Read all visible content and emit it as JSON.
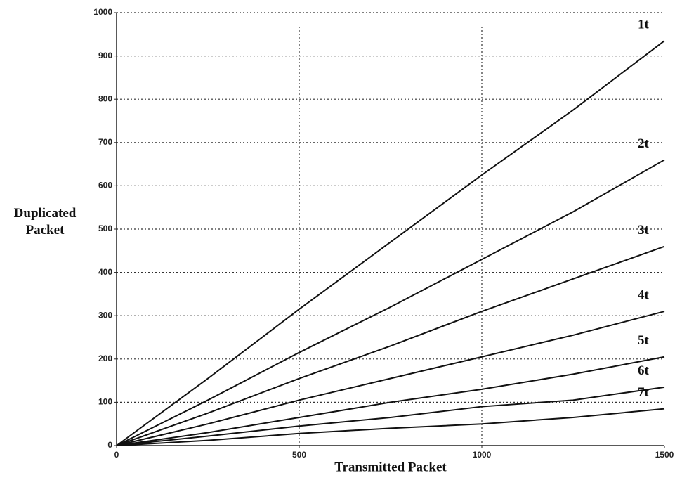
{
  "chart_data": {
    "type": "line",
    "x_label": "Transmitted Packet",
    "y_label": "Duplicated Packet",
    "x": [
      0,
      250,
      500,
      750,
      1000,
      1250,
      1500
    ],
    "series": [
      {
        "name": "1t",
        "color": "#111111",
        "values": [
          0,
          155,
          315,
          470,
          625,
          775,
          935
        ]
      },
      {
        "name": "2t",
        "color": "#111111",
        "values": [
          0,
          105,
          215,
          320,
          430,
          540,
          660
        ]
      },
      {
        "name": "3t",
        "color": "#111111",
        "values": [
          0,
          75,
          155,
          230,
          310,
          385,
          460
        ]
      },
      {
        "name": "4t",
        "color": "#111111",
        "values": [
          0,
          50,
          105,
          155,
          205,
          255,
          310
        ]
      },
      {
        "name": "5t",
        "color": "#111111",
        "values": [
          0,
          30,
          65,
          100,
          130,
          165,
          205
        ]
      },
      {
        "name": "6t",
        "color": "#111111",
        "values": [
          0,
          22,
          45,
          65,
          90,
          105,
          135
        ]
      },
      {
        "name": "7t",
        "color": "#111111",
        "values": [
          0,
          12,
          28,
          40,
          50,
          65,
          85
        ]
      }
    ],
    "xlim": [
      0,
      1500
    ],
    "xticks": [
      0,
      500,
      1000,
      1500
    ],
    "ylim": [
      0,
      1000
    ],
    "yticks": [
      0,
      100,
      200,
      300,
      400,
      500,
      600,
      700,
      800,
      900,
      1000
    ],
    "grid": true
  }
}
